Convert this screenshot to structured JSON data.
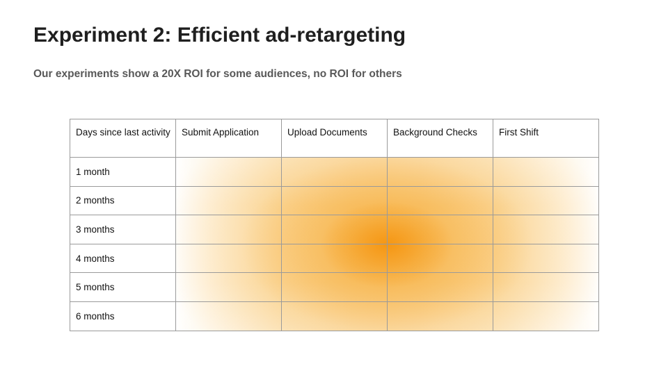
{
  "slide": {
    "title": "Experiment 2: Efficient ad-retargeting",
    "subtitle": "Our experiments show a 20X ROI for some audiences, no ROI for others"
  },
  "table": {
    "headers": [
      "Days since last activity",
      "Submit Application",
      "Upload Documents",
      "Background Checks",
      "First Shift"
    ],
    "row_labels": [
      "1 month",
      "2 months",
      "3 months",
      "4 months",
      "5 months",
      "6 months"
    ]
  },
  "heatmap_colors": {
    "hot": "#F6960F",
    "mid": "#F8B853",
    "light": "#FBDCA4",
    "faint": "#FEF3DF",
    "background": "#FFFFFF",
    "grid_line": "#9A9A9A"
  },
  "chart_data": {
    "type": "heatmap",
    "title": "Experiment 2: Efficient ad-retargeting",
    "x_categories": [
      "Submit Application",
      "Upload Documents",
      "Background Checks",
      "First Shift"
    ],
    "y_categories": [
      "1 month",
      "2 months",
      "3 months",
      "4 months",
      "5 months",
      "6 months"
    ],
    "series": [
      {
        "name": "1 month",
        "values": [
          0.15,
          0.4,
          0.45,
          0.2
        ]
      },
      {
        "name": "2 months",
        "values": [
          0.2,
          0.5,
          0.6,
          0.25
        ]
      },
      {
        "name": "3 months",
        "values": [
          0.25,
          0.8,
          0.9,
          0.3
        ]
      },
      {
        "name": "4 months",
        "values": [
          0.25,
          0.8,
          0.9,
          0.3
        ]
      },
      {
        "name": "5 months",
        "values": [
          0.2,
          0.5,
          0.6,
          0.25
        ]
      },
      {
        "name": "6 months",
        "values": [
          0.15,
          0.4,
          0.45,
          0.2
        ]
      }
    ],
    "value_scale": "estimated heat intensity read from color, 0 = white (no ROI) to 1 = strongest orange",
    "hotspot": "boundary of Upload Documents / Background Checks at 3-4 months",
    "legend": "none",
    "grid": true
  }
}
